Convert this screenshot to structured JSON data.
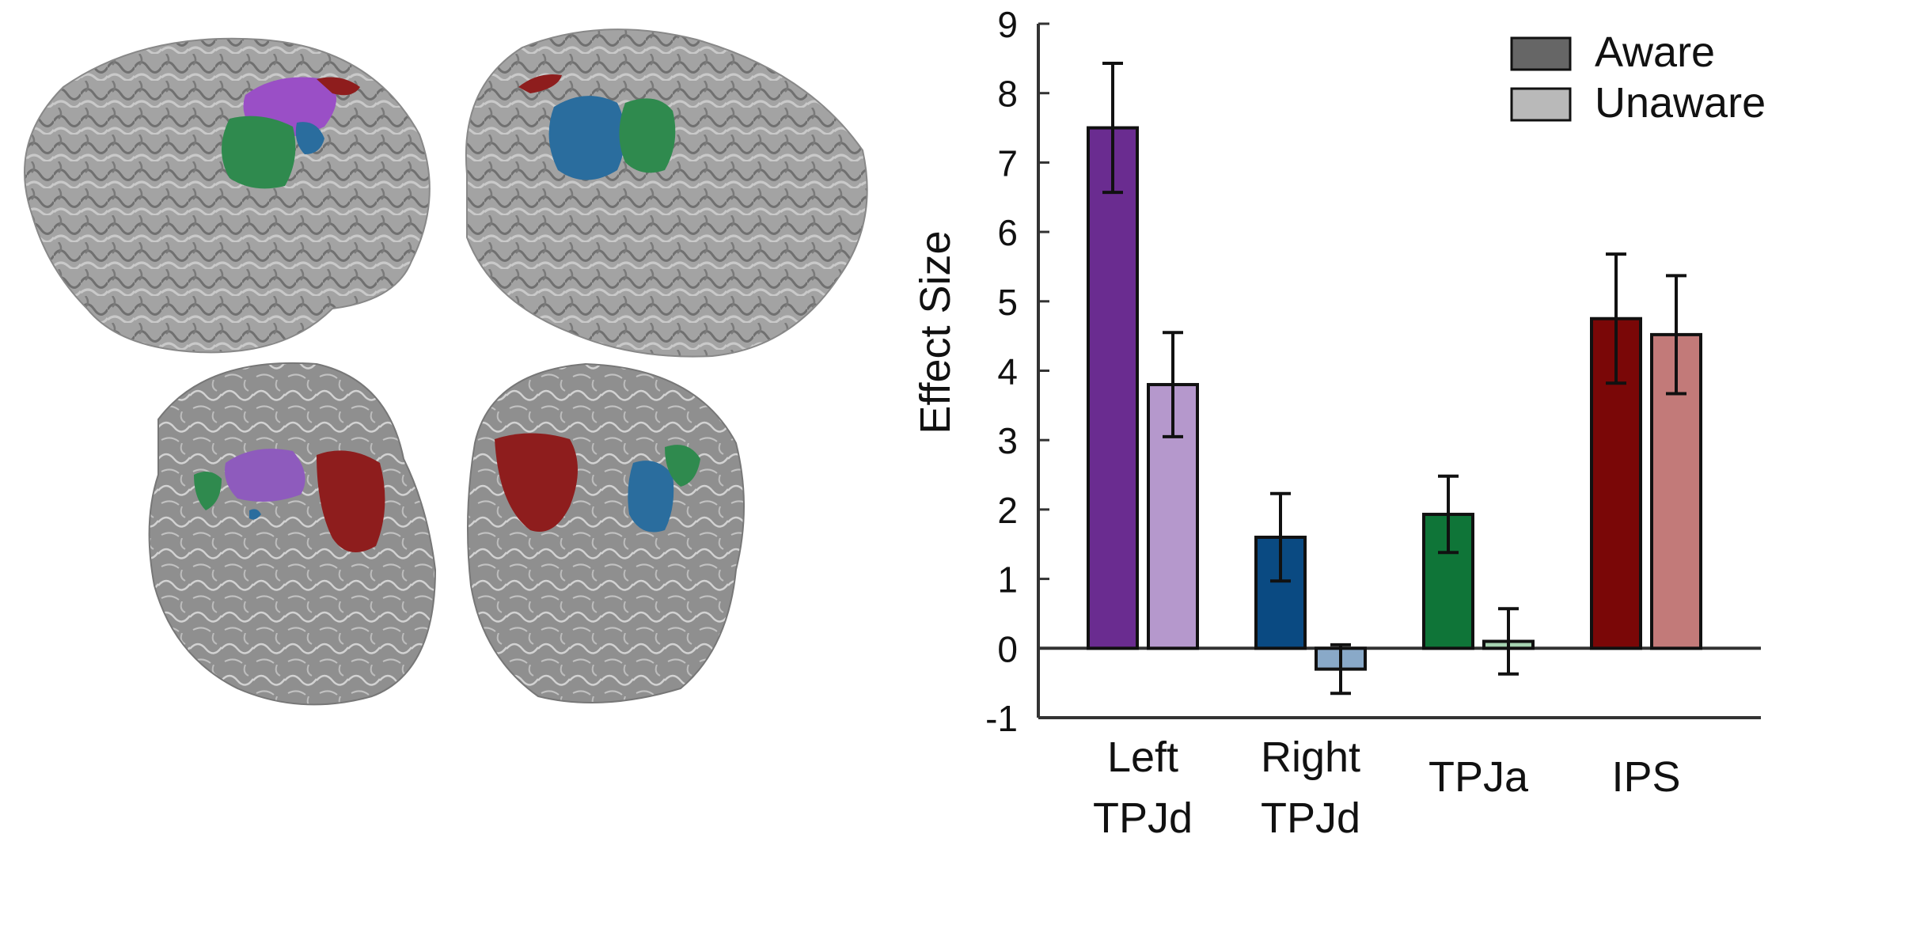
{
  "figure": {
    "brain_views": [
      {
        "name": "left-lateral-hemisphere",
        "regions": [
          "purple",
          "green",
          "blue",
          "red"
        ]
      },
      {
        "name": "right-lateral-hemisphere",
        "regions": [
          "blue",
          "green",
          "red"
        ]
      },
      {
        "name": "left-inflated-surface",
        "regions": [
          "purple",
          "green",
          "red",
          "blue"
        ]
      },
      {
        "name": "right-inflated-surface",
        "regions": [
          "red",
          "blue",
          "green"
        ]
      }
    ]
  },
  "chart_data": {
    "type": "bar",
    "ylabel": "Effect Size",
    "ylim": [
      -1,
      9
    ],
    "yticks": [
      "9",
      "8",
      "7",
      "6",
      "5",
      "4",
      "3",
      "2",
      "1",
      "0",
      "-1"
    ],
    "categories": [
      {
        "lines": [
          "Left",
          "TPJd"
        ]
      },
      {
        "lines": [
          "Right",
          "TPJd"
        ]
      },
      {
        "lines": [
          "TPJa"
        ]
      },
      {
        "lines": [
          "IPS"
        ]
      }
    ],
    "series": [
      {
        "name": "Aware",
        "values": [
          7.5,
          1.6,
          1.93,
          4.75
        ],
        "errors": [
          0.93,
          0.63,
          0.55,
          0.93
        ],
        "colors": [
          "#6a2c90",
          "#0a4a82",
          "#0f7538",
          "#7a0707"
        ],
        "legend_color": "#666666"
      },
      {
        "name": "Unaware",
        "values": [
          3.8,
          -0.3,
          0.1,
          4.52
        ],
        "errors": [
          0.75,
          0.35,
          0.47,
          0.85
        ],
        "colors": [
          "#b598cc",
          "#89a9c8",
          "#a6d3b1",
          "#c27a79"
        ],
        "legend_color": "#b9b9b9"
      }
    ],
    "legend_position": "top-right",
    "grid": false
  }
}
